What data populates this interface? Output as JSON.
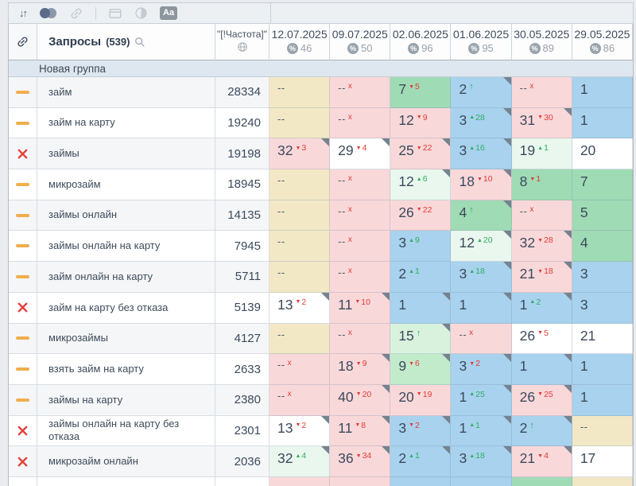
{
  "toolbar": {
    "aa_label": "Aa"
  },
  "colors": {
    "tan": "#f2e8c6",
    "pink": "#f9d8da",
    "green": "#9fdbb5",
    "green2": "#c2ebcc",
    "green3": "#d9f2de",
    "palegreen": "#e9f7ee",
    "blue": "#a8d2ee",
    "white": "#ffffff"
  },
  "header": {
    "queries_label": "Запросы",
    "queries_count": "(539)",
    "frequency_label": "\"[!Частота]\"",
    "dates": [
      {
        "date": "12.07.2025",
        "percent": 46
      },
      {
        "date": "09.07.2025",
        "percent": 50
      },
      {
        "date": "02.06.2025",
        "percent": 96
      },
      {
        "date": "01.06.2025",
        "percent": 95
      },
      {
        "date": "30.05.2025",
        "percent": 89
      },
      {
        "date": "29.05.2025",
        "percent": 86
      }
    ]
  },
  "group": {
    "title": "Новая группа"
  },
  "rows": [
    {
      "status": "dash",
      "keyword": "займ",
      "frequency": "28334",
      "cells": [
        {
          "v": "--",
          "bg": "tan"
        },
        {
          "v": "--",
          "x": true,
          "bg": "pink"
        },
        {
          "v": "7",
          "d": -5,
          "bg": "green"
        },
        {
          "v": "2",
          "up": true,
          "bg": "blue",
          "corner": true
        },
        {
          "v": "--",
          "x": true,
          "bg": "pink"
        },
        {
          "v": "1",
          "bg": "blue"
        }
      ]
    },
    {
      "status": "dash",
      "keyword": "займ на карту",
      "frequency": "19240",
      "cells": [
        {
          "v": "--",
          "bg": "tan"
        },
        {
          "v": "--",
          "x": true,
          "bg": "pink"
        },
        {
          "v": "12",
          "d": -9,
          "bg": "pink"
        },
        {
          "v": "3",
          "d": 28,
          "bg": "blue",
          "corner": true
        },
        {
          "v": "31",
          "d": -30,
          "bg": "pink",
          "corner": true
        },
        {
          "v": "1",
          "bg": "blue"
        }
      ]
    },
    {
      "status": "x",
      "keyword": "займы",
      "frequency": "19198",
      "cells": [
        {
          "v": "32",
          "d": -3,
          "bg": "pink",
          "corner": true
        },
        {
          "v": "29",
          "d": -4,
          "bg": "white",
          "corner": true
        },
        {
          "v": "25",
          "d": -22,
          "bg": "pink",
          "corner": true
        },
        {
          "v": "3",
          "d": 16,
          "bg": "blue",
          "corner": true
        },
        {
          "v": "19",
          "d": 1,
          "bg": "palegreen"
        },
        {
          "v": "20",
          "bg": "white"
        }
      ]
    },
    {
      "status": "dash",
      "keyword": "микрозайм",
      "frequency": "18945",
      "cells": [
        {
          "v": "--",
          "bg": "tan"
        },
        {
          "v": "--",
          "x": true,
          "bg": "pink"
        },
        {
          "v": "12",
          "d": 6,
          "bg": "palegreen",
          "corner": true
        },
        {
          "v": "18",
          "d": -10,
          "bg": "pink",
          "corner": true
        },
        {
          "v": "8",
          "d": -1,
          "bg": "green"
        },
        {
          "v": "7",
          "bg": "green"
        }
      ]
    },
    {
      "status": "dash",
      "keyword": "займы онлайн",
      "frequency": "14135",
      "cells": [
        {
          "v": "--",
          "bg": "tan"
        },
        {
          "v": "--",
          "x": true,
          "bg": "pink"
        },
        {
          "v": "26",
          "d": -22,
          "bg": "pink"
        },
        {
          "v": "4",
          "up": true,
          "bg": "green",
          "corner": true
        },
        {
          "v": "--",
          "x": true,
          "bg": "pink"
        },
        {
          "v": "5",
          "bg": "green"
        }
      ]
    },
    {
      "status": "dash",
      "keyword": "займы онлайн на карту",
      "frequency": "7945",
      "cells": [
        {
          "v": "--",
          "bg": "tan"
        },
        {
          "v": "--",
          "x": true,
          "bg": "pink"
        },
        {
          "v": "3",
          "d": 9,
          "bg": "blue"
        },
        {
          "v": "12",
          "d": 20,
          "bg": "palegreen",
          "corner": true
        },
        {
          "v": "32",
          "d": -28,
          "bg": "pink",
          "corner": true
        },
        {
          "v": "4",
          "bg": "green"
        }
      ]
    },
    {
      "status": "dash",
      "keyword": "займ онлайн на карту",
      "frequency": "5711",
      "cells": [
        {
          "v": "--",
          "bg": "tan"
        },
        {
          "v": "--",
          "x": true,
          "bg": "pink"
        },
        {
          "v": "2",
          "d": 1,
          "bg": "blue"
        },
        {
          "v": "3",
          "d": 18,
          "bg": "blue",
          "corner": true
        },
        {
          "v": "21",
          "d": -18,
          "bg": "pink",
          "corner": true
        },
        {
          "v": "3",
          "bg": "blue"
        }
      ]
    },
    {
      "status": "x",
      "keyword": "займ на карту без отказа",
      "frequency": "5139",
      "cells": [
        {
          "v": "13",
          "d": -2,
          "bg": "white",
          "corner": true
        },
        {
          "v": "11",
          "d": -10,
          "bg": "pink",
          "corner": true
        },
        {
          "v": "1",
          "bg": "blue",
          "corner": true
        },
        {
          "v": "1",
          "bg": "blue",
          "corner": true
        },
        {
          "v": "1",
          "d": 2,
          "bg": "blue",
          "corner": true
        },
        {
          "v": "3",
          "bg": "blue"
        }
      ]
    },
    {
      "status": "dash",
      "keyword": "микрозаймы",
      "frequency": "4127",
      "cells": [
        {
          "v": "--",
          "bg": "tan"
        },
        {
          "v": "--",
          "x": true,
          "bg": "pink"
        },
        {
          "v": "15",
          "up": true,
          "bg": "green3",
          "corner": true
        },
        {
          "v": "--",
          "x": true,
          "bg": "pink"
        },
        {
          "v": "26",
          "d": -5,
          "bg": "white"
        },
        {
          "v": "21",
          "bg": "white"
        }
      ]
    },
    {
      "status": "dash",
      "keyword": "взять займ на карту",
      "frequency": "2633",
      "cells": [
        {
          "v": "--",
          "x": true,
          "bg": "pink"
        },
        {
          "v": "18",
          "d": -9,
          "bg": "pink",
          "corner": true
        },
        {
          "v": "9",
          "d": -6,
          "bg": "green2",
          "corner": true
        },
        {
          "v": "3",
          "d": -2,
          "bg": "blue",
          "corner": true
        },
        {
          "v": "1",
          "bg": "blue",
          "corner": true
        },
        {
          "v": "1",
          "bg": "blue"
        }
      ]
    },
    {
      "status": "dash",
      "keyword": "займы на карту",
      "frequency": "2380",
      "cells": [
        {
          "v": "--",
          "x": true,
          "bg": "pink"
        },
        {
          "v": "40",
          "d": -20,
          "bg": "pink",
          "corner": true
        },
        {
          "v": "20",
          "d": -19,
          "bg": "pink"
        },
        {
          "v": "1",
          "d": 25,
          "bg": "blue",
          "corner": true
        },
        {
          "v": "26",
          "d": -25,
          "bg": "pink",
          "corner": true
        },
        {
          "v": "1",
          "bg": "blue"
        }
      ]
    },
    {
      "status": "x",
      "keyword": "займы онлайн на карту без отказа",
      "frequency": "2301",
      "cells": [
        {
          "v": "13",
          "d": -2,
          "bg": "white",
          "corner": true
        },
        {
          "v": "11",
          "d": -8,
          "bg": "pink",
          "corner": true
        },
        {
          "v": "3",
          "d": -2,
          "bg": "blue",
          "corner": true
        },
        {
          "v": "1",
          "d": 1,
          "bg": "blue",
          "corner": true
        },
        {
          "v": "2",
          "up": true,
          "bg": "blue",
          "corner": true
        },
        {
          "v": "--",
          "bg": "tan"
        }
      ]
    },
    {
      "status": "x",
      "keyword": "микрозайм онлайн",
      "frequency": "2036",
      "cells": [
        {
          "v": "32",
          "d": 4,
          "bg": "palegreen",
          "corner": true
        },
        {
          "v": "36",
          "d": -34,
          "bg": "pink",
          "corner": true
        },
        {
          "v": "2",
          "d": 1,
          "bg": "blue",
          "corner": true
        },
        {
          "v": "3",
          "d": 18,
          "bg": "blue",
          "corner": true
        },
        {
          "v": "21",
          "d": -4,
          "bg": "pink",
          "corner": true
        },
        {
          "v": "17",
          "bg": "white"
        }
      ]
    }
  ],
  "partial_row": [
    "pink",
    "pink",
    "blue",
    "blue",
    "green",
    "tan"
  ]
}
